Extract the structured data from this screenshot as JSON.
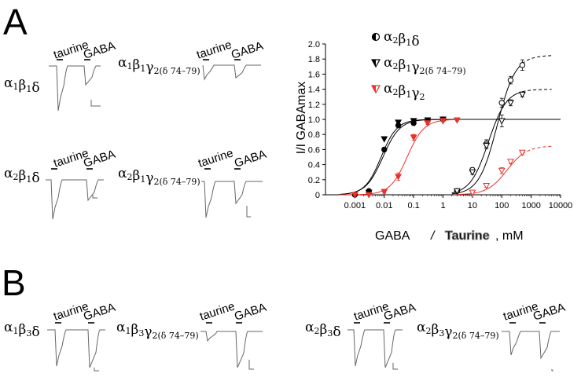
{
  "figure": {
    "panel_a": "A",
    "panel_b": "B",
    "trace_label_taurine": "taurine",
    "trace_label_gaba": "GABA",
    "traces_a": [
      {
        "main": "α",
        "s1": "1",
        "m2": "β",
        "s2": "1",
        "m3": "δ",
        "s3": "",
        "suffix": ""
      },
      {
        "main": "α",
        "s1": "1",
        "m2": "β",
        "s2": "1",
        "m3": "γ",
        "s3": "2(δ 74–79)",
        "suffix": ""
      },
      {
        "main": "α",
        "s1": "2",
        "m2": "β",
        "s2": "1",
        "m3": "δ",
        "s3": "",
        "suffix": ""
      },
      {
        "main": "α",
        "s1": "2",
        "m2": "β",
        "s2": "1",
        "m3": "γ",
        "s3": "2(δ 74–79)",
        "suffix": ""
      }
    ],
    "traces_b": [
      {
        "main": "α",
        "s1": "1",
        "m2": "β",
        "s2": "3",
        "m3": "δ",
        "s3": "",
        "suffix": ""
      },
      {
        "main": "α",
        "s1": "1",
        "m2": "β",
        "s2": "3",
        "m3": "γ",
        "s3": "2(δ 74–79)",
        "suffix": ""
      },
      {
        "main": "α",
        "s1": "2",
        "m2": "β",
        "s2": "3",
        "m3": "δ",
        "s3": "",
        "suffix": ""
      },
      {
        "main": "α",
        "s1": "2",
        "m2": "β",
        "s2": "3",
        "m3": "γ",
        "s3": "2(δ 74–79)",
        "suffix": ""
      }
    ]
  },
  "chart_data": {
    "type": "scatter",
    "xscale": "log",
    "xlim": [
      0.0001,
      10000
    ],
    "ylim": [
      0,
      2.0
    ],
    "x_ticks": [
      "0.001",
      "0.01",
      "0.1",
      "1",
      "10",
      "100",
      "1000",
      "10000"
    ],
    "y_ticks": [
      "0",
      "0.2",
      "0.4",
      "0.6",
      "0.8",
      "1.0",
      "1.2",
      "1.4",
      "1.6",
      "1.8",
      "2.0"
    ],
    "ylabel": "I/I GABAmax",
    "xlabel_gaba": "GABA",
    "xlabel_sep": "/",
    "xlabel_taurine": "Taurine",
    "xlabel_unit": ", mM",
    "grid": false,
    "legend_position": "top-right",
    "legend": [
      {
        "main": "α",
        "s1": "2",
        "m2": "β",
        "s2": "1",
        "m3": "δ",
        "s3": "",
        "color": "#000000",
        "marker": "half-circle"
      },
      {
        "main": "α",
        "s1": "2",
        "m2": "β",
        "s2": "1",
        "m3": "γ",
        "s3": "2(δ 74–79)",
        "color": "#000000",
        "marker": "half-triangle"
      },
      {
        "main": "α",
        "s1": "2",
        "m2": "β",
        "s2": "1",
        "m3": "γ",
        "s3": "2",
        "color": "#e8322a",
        "marker": "half-triangle"
      }
    ],
    "series": [
      {
        "agonist": "GABA",
        "receptor": 0,
        "color": "#000000",
        "marker": "circle-filled",
        "x": [
          0.001,
          0.003,
          0.01,
          0.03,
          0.1,
          0.3,
          1
        ],
        "y": [
          0.0,
          0.05,
          0.6,
          0.92,
          0.95,
          0.98,
          1.0
        ],
        "fit": {
          "ec50": 0.009,
          "hill": 1.5,
          "max": 1.0,
          "from": 0.0003,
          "to": 10000
        }
      },
      {
        "agonist": "GABA",
        "receptor": 1,
        "color": "#000000",
        "marker": "triangle-filled",
        "x": [
          0.001,
          0.003,
          0.01,
          0.03,
          0.1,
          0.3,
          1
        ],
        "y": [
          0.0,
          0.03,
          0.74,
          0.96,
          0.98,
          0.99,
          1.0
        ],
        "fit": {
          "ec50": 0.0078,
          "hill": 1.6,
          "max": 1.0,
          "from": 0.0003,
          "to": 10
        }
      },
      {
        "agonist": "GABA",
        "receptor": 2,
        "color": "#e8322a",
        "marker": "triangle-filled",
        "x": [
          0.001,
          0.003,
          0.01,
          0.03,
          0.1,
          0.3,
          1,
          3
        ],
        "y": [
          0.0,
          0.0,
          0.04,
          0.24,
          0.76,
          0.95,
          0.98,
          0.99
        ],
        "err": [
          0,
          0,
          0.02,
          0.05,
          0.04,
          0.02,
          0.01,
          0.01
        ],
        "fit": {
          "ec50": 0.06,
          "hill": 1.5,
          "max": 1.0,
          "from": 0.0003,
          "to": 3
        }
      },
      {
        "agonist": "Taurine",
        "receptor": 0,
        "color": "#000000",
        "marker": "circle-open",
        "x": [
          3,
          10,
          30,
          100,
          200,
          500
        ],
        "y": [
          0.05,
          0.33,
          0.68,
          1.22,
          1.52,
          1.72
        ],
        "err": [
          0.01,
          0.03,
          0.05,
          0.06,
          0.05,
          0.07
        ],
        "fit": {
          "ec50": 70,
          "hill": 1.4,
          "max": 1.85,
          "from": 2,
          "to": 500
        },
        "fit_extended": {
          "from": 500,
          "to": 5000
        }
      },
      {
        "agonist": "Taurine",
        "receptor": 1,
        "color": "#000000",
        "marker": "triangle-open",
        "x": [
          3,
          10,
          30,
          100,
          200,
          500
        ],
        "y": [
          0.05,
          0.3,
          0.65,
          0.98,
          1.22,
          1.33
        ],
        "err": [
          0.01,
          0.03,
          0.04,
          0.08,
          0.04,
          0.03
        ],
        "fit": {
          "ec50": 35,
          "hill": 1.4,
          "max": 1.4,
          "from": 2,
          "to": 500
        },
        "fit_extended": {
          "from": 500,
          "to": 5000
        }
      },
      {
        "agonist": "Taurine",
        "receptor": 2,
        "color": "#e8322a",
        "marker": "triangle-open",
        "x": [
          10,
          30,
          100,
          200,
          500
        ],
        "y": [
          0.03,
          0.12,
          0.32,
          0.44,
          0.56
        ],
        "err": [
          0.01,
          0.02,
          0.04,
          0.03,
          0.03
        ],
        "fit": {
          "ec50": 150,
          "hill": 1.3,
          "max": 0.65,
          "from": 3,
          "to": 500
        },
        "fit_extended": {
          "from": 500,
          "to": 5000
        }
      }
    ]
  }
}
